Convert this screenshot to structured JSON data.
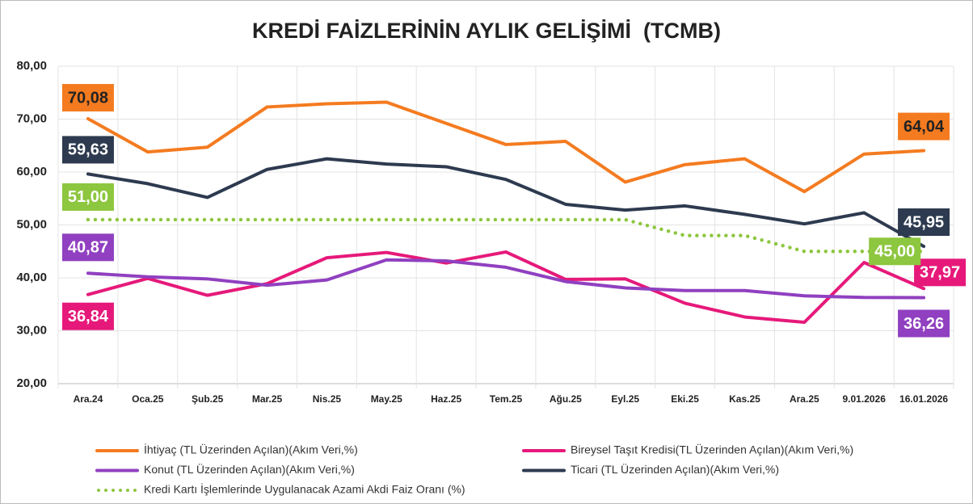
{
  "chart_data": {
    "type": "line",
    "title": "KREDİ FAİZLERİNİN AYLIK GELİŞİMİ  (TCMB)",
    "categories": [
      "Ara.24",
      "Oca.25",
      "Şub.25",
      "Mar.25",
      "Nis.25",
      "May.25",
      "Haz.25",
      "Tem.25",
      "Ağu.25",
      "Eyl.25",
      "Eki.25",
      "Kas.25",
      "Ara.25",
      "9.01.2026",
      "16.01.2026"
    ],
    "ylim": [
      20,
      80
    ],
    "yticks": [
      {
        "value": 20,
        "label": "20,00"
      },
      {
        "value": 30,
        "label": "30,00"
      },
      {
        "value": 40,
        "label": "40,00"
      },
      {
        "value": 50,
        "label": "50,00"
      },
      {
        "value": 60,
        "label": "60,00"
      },
      {
        "value": 70,
        "label": "70,00"
      },
      {
        "value": 80,
        "label": "80,00"
      }
    ],
    "grid": true,
    "legend": "bottom",
    "series": [
      {
        "name": "İhtiyaç (TL Üzerinden Açılan)(Akım Veri,%)",
        "color": "#f47b20",
        "values": [
          70.08,
          63.8,
          64.7,
          72.3,
          72.9,
          73.2,
          69.2,
          65.2,
          65.8,
          58.1,
          61.4,
          62.5,
          56.3,
          63.4,
          64.04
        ],
        "value_labels": [
          "70,08",
          null,
          null,
          null,
          null,
          null,
          null,
          null,
          null,
          null,
          null,
          null,
          null,
          null,
          "64,04"
        ]
      },
      {
        "name": "Bireysel Taşıt Kredisi(TL Üzerinden Açılan)(Akım Veri,%)",
        "color": "#e6197a",
        "values": [
          36.84,
          39.9,
          36.7,
          38.9,
          43.8,
          44.8,
          42.8,
          44.9,
          39.7,
          39.8,
          35.2,
          32.6,
          31.6,
          42.9,
          37.97
        ],
        "value_labels": [
          "36,84",
          null,
          null,
          null,
          null,
          null,
          null,
          null,
          null,
          null,
          null,
          null,
          null,
          null,
          "37,97"
        ]
      },
      {
        "name": "Konut (TL Üzerinden Açılan)(Akım Veri,%)",
        "color": "#9040c0",
        "values": [
          40.87,
          40.2,
          39.8,
          38.6,
          39.6,
          43.4,
          43.2,
          42.0,
          39.3,
          38.1,
          37.6,
          37.6,
          36.6,
          36.3,
          36.26
        ],
        "value_labels": [
          "40,87",
          null,
          null,
          null,
          null,
          null,
          null,
          null,
          null,
          null,
          null,
          null,
          null,
          null,
          "36,26"
        ]
      },
      {
        "name": "Ticari (TL Üzerinden Açılan)(Akım Veri,%)",
        "color": "#2d3a4f",
        "values": [
          59.63,
          57.8,
          55.2,
          60.5,
          62.5,
          61.5,
          61.0,
          58.6,
          53.9,
          52.8,
          53.6,
          52.0,
          50.2,
          52.3,
          45.95
        ],
        "value_labels": [
          "59,63",
          null,
          null,
          null,
          null,
          null,
          null,
          null,
          null,
          null,
          null,
          null,
          null,
          null,
          "45,95"
        ]
      },
      {
        "name": "Kredi Kartı İşlemlerinde Uygulanacak Azami Akdi Faiz Oranı (%)",
        "color": "#8dc63f",
        "dotted": true,
        "values": [
          51,
          51,
          51,
          51,
          51,
          51,
          51,
          51,
          51,
          51,
          48,
          48,
          45,
          45,
          45
        ],
        "value_labels": [
          "51,00",
          null,
          null,
          null,
          null,
          null,
          null,
          null,
          null,
          null,
          null,
          null,
          null,
          "45,00",
          null
        ]
      }
    ]
  }
}
